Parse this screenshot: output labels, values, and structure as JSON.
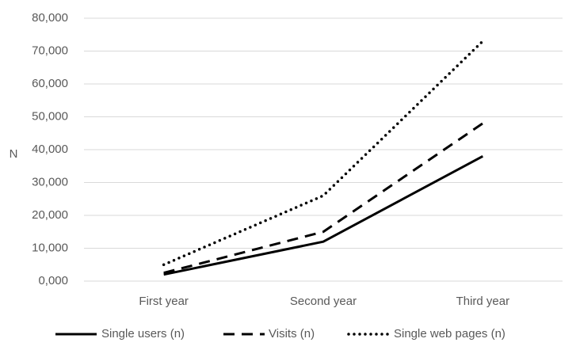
{
  "chart_data": {
    "type": "line",
    "title": "",
    "xlabel": "",
    "ylabel": "N",
    "categories": [
      "First year",
      "Second year",
      "Third year"
    ],
    "ylim": [
      0,
      80000
    ],
    "yticks": [
      0,
      10000,
      20000,
      30000,
      40000,
      50000,
      60000,
      70000,
      80000
    ],
    "ytick_labels": [
      "0,000",
      "10,000",
      "20,000",
      "30,000",
      "40,000",
      "50,000",
      "60,000",
      "70,000",
      "80,000"
    ],
    "grid": true,
    "legend_position": "bottom",
    "series": [
      {
        "name": "Single users (n)",
        "values": [
          2000,
          12000,
          38000
        ],
        "style": "solid",
        "color": "#000000"
      },
      {
        "name": "Visits (n)",
        "values": [
          2500,
          15000,
          48000
        ],
        "style": "dashed",
        "color": "#000000"
      },
      {
        "name": "Single web pages (n)",
        "values": [
          5000,
          26000,
          73000
        ],
        "style": "dotted",
        "color": "#000000"
      }
    ],
    "gridline_color": "#d9d9d9",
    "axis_text_color": "#595959"
  }
}
